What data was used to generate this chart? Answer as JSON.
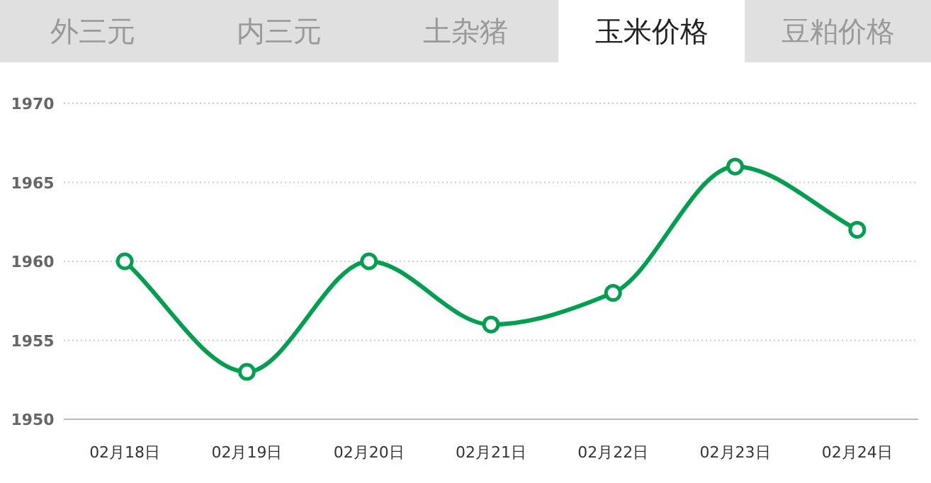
{
  "chart_data": {
    "type": "line",
    "title": "玉米价格",
    "annotations": [
      "外三元",
      "内三元",
      "土杂猪",
      "豆粕价格"
    ],
    "categories": [
      "02月18日",
      "02月19日",
      "02月20日",
      "02月21日",
      "02月22日",
      "02月23日",
      "02月24日"
    ],
    "series": [
      {
        "color": "#00a04f",
        "values": [
          1960,
          1953,
          1960,
          1956,
          1958,
          1966,
          1962
        ]
      }
    ],
    "ylim": [
      1950,
      1970
    ],
    "yticks": [
      1950,
      1955,
      1960,
      1965,
      1970
    ],
    "grid": "y",
    "marker": "circle",
    "line_style": "solid"
  }
}
